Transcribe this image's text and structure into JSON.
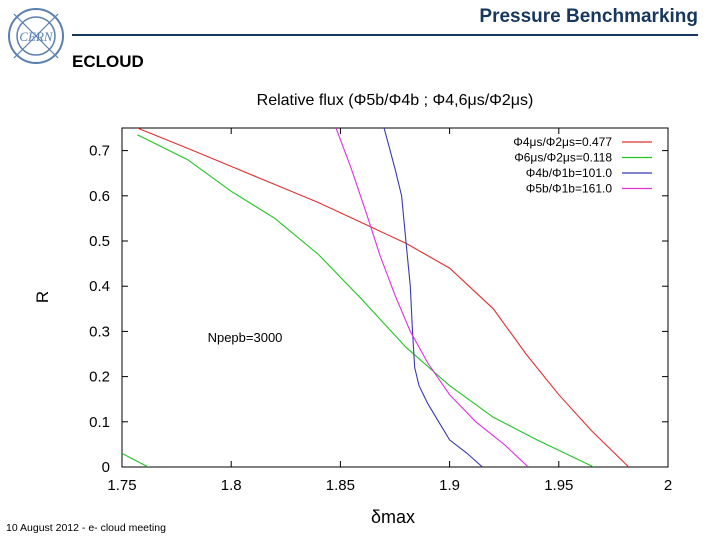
{
  "header": {
    "title": "Pressure Benchmarking",
    "logo_text": "CERN",
    "accent": "#17375e"
  },
  "section_title": "ECLOUD",
  "annotation": "Npepb=3000",
  "footer": "10 August 2012  -  e- cloud meeting",
  "chart_data": {
    "type": "line",
    "title": "Relative flux (Φ5b/Φ4b ; Φ4,6μs/Φ2μs)",
    "xlabel": "δmax",
    "ylabel": "R",
    "xlim": [
      1.75,
      2.0
    ],
    "ylim": [
      0,
      0.75
    ],
    "xticks": [
      1.75,
      1.8,
      1.85,
      1.9,
      1.95,
      2.0
    ],
    "xtick_labels": [
      "1.75",
      "1.8",
      "1.85",
      "1.9",
      "1.95",
      "2"
    ],
    "yticks": [
      0,
      0.1,
      0.2,
      0.3,
      0.4,
      0.5,
      0.6,
      0.7
    ],
    "ytick_labels": [
      "0",
      "0.1",
      "0.2",
      "0.3",
      "0.4",
      "0.5",
      "0.6",
      "0.7"
    ],
    "legend_position": "top-right",
    "series": [
      {
        "name": "Φ4μs/Φ2μs=0.477",
        "color": "#e03030",
        "x": [
          1.757,
          1.78,
          1.8,
          1.82,
          1.84,
          1.86,
          1.88,
          1.9,
          1.92,
          1.935,
          1.95,
          1.965,
          1.982
        ],
        "y": [
          0.75,
          0.705,
          0.665,
          0.625,
          0.585,
          0.54,
          0.495,
          0.44,
          0.35,
          0.25,
          0.16,
          0.08,
          0.0
        ]
      },
      {
        "name": "Φ6μs/Φ2μs=0.118",
        "color": "#22c422",
        "x": [
          1.757,
          1.78,
          1.8,
          1.82,
          1.84,
          1.86,
          1.88,
          1.9,
          1.92,
          1.94,
          1.966
        ],
        "y": [
          0.735,
          0.68,
          0.61,
          0.55,
          0.47,
          0.37,
          0.265,
          0.18,
          0.11,
          0.06,
          0.0
        ]
      },
      {
        "name": "Φ4b/Φ1b=101.0",
        "color": "#3838b8",
        "x": [
          1.87,
          1.875,
          1.878,
          1.88,
          1.882,
          1.883,
          1.884,
          1.886,
          1.89,
          1.895,
          1.9,
          1.908,
          1.915
        ],
        "y": [
          0.75,
          0.66,
          0.6,
          0.5,
          0.4,
          0.3,
          0.22,
          0.18,
          0.14,
          0.1,
          0.06,
          0.03,
          0.0
        ]
      },
      {
        "name": "Φ5b/Φ1b=161.0",
        "color": "#e030e0",
        "x": [
          1.848,
          1.855,
          1.862,
          1.868,
          1.875,
          1.882,
          1.89,
          1.9,
          1.912,
          1.925,
          1.936
        ],
        "y": [
          0.75,
          0.66,
          0.56,
          0.47,
          0.38,
          0.3,
          0.23,
          0.16,
          0.1,
          0.05,
          0.0
        ]
      },
      {
        "name": "lower-left",
        "color": "#22c422",
        "legend": false,
        "x": [
          1.75,
          1.756,
          1.762
        ],
        "y": [
          0.03,
          0.015,
          0.0
        ]
      }
    ]
  }
}
